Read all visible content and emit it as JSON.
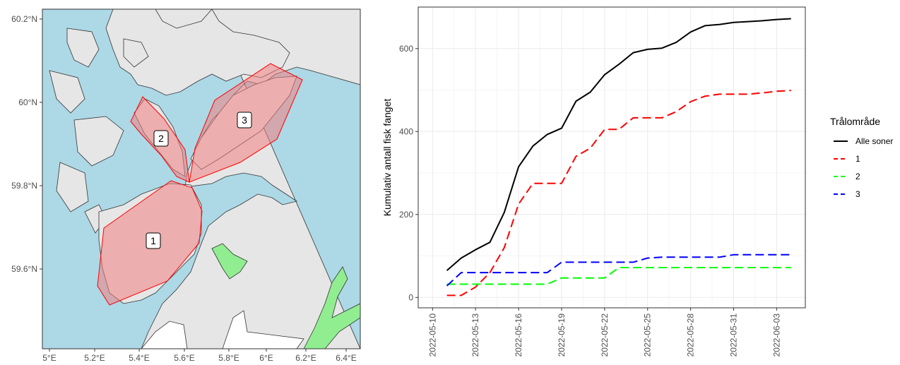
{
  "map": {
    "lat_labels": [
      "60.2°N",
      "60°N",
      "59.8°N",
      "59.6°N"
    ],
    "lon_labels": [
      "5°E",
      "5.2°E",
      "5.4°E",
      "5.6°E",
      "5.8°E",
      "6°E",
      "6.2°E",
      "6.4°E"
    ],
    "zones": [
      {
        "label": "1"
      },
      {
        "label": "2"
      },
      {
        "label": "3"
      }
    ],
    "colors": {
      "sea": "#add8e6",
      "land": "#e6e6e6",
      "zone_fill": "#f08080",
      "zone_stroke": "#ff0000",
      "special_land": "#90ee90"
    }
  },
  "chart_data": {
    "type": "line",
    "ylabel": "Kumulativ antall fisk fanget",
    "xlabel": "",
    "x_tick_labels": [
      "2022-05-10",
      "2022-05-13",
      "2022-05-16",
      "2022-05-19",
      "2022-05-22",
      "2022-05-25",
      "2022-05-28",
      "2022-05-31",
      "2022-06-03"
    ],
    "y_ticks": [
      0,
      200,
      400,
      600
    ],
    "ylim": [
      -25,
      700
    ],
    "legend_title": "Trålområde",
    "legend_position": "right",
    "grid": true,
    "x_dates": [
      "2022-05-11",
      "2022-05-12",
      "2022-05-13",
      "2022-05-14",
      "2022-05-15",
      "2022-05-16",
      "2022-05-17",
      "2022-05-18",
      "2022-05-19",
      "2022-05-20",
      "2022-05-21",
      "2022-05-22",
      "2022-05-23",
      "2022-05-24",
      "2022-05-25",
      "2022-05-26",
      "2022-05-27",
      "2022-05-28",
      "2022-05-29",
      "2022-05-30",
      "2022-05-31",
      "2022-06-01",
      "2022-06-02",
      "2022-06-03",
      "2022-06-04"
    ],
    "series": [
      {
        "name": "Alle soner",
        "color": "#000000",
        "dash": "solid",
        "values": [
          65,
          95,
          115,
          133,
          205,
          315,
          365,
          393,
          408,
          473,
          495,
          537,
          562,
          590,
          598,
          601,
          615,
          640,
          655,
          658,
          663,
          665,
          667,
          670,
          672
        ]
      },
      {
        "name": "1",
        "color": "#ff0000",
        "dash": "dashed",
        "values": [
          5,
          5,
          25,
          60,
          120,
          225,
          275,
          275,
          275,
          340,
          360,
          405,
          405,
          433,
          433,
          433,
          448,
          472,
          485,
          490,
          490,
          490,
          493,
          497,
          499
        ]
      },
      {
        "name": "2",
        "color": "#00ff00",
        "dash": "dashed",
        "values": [
          32,
          32,
          32,
          32,
          32,
          32,
          32,
          32,
          47,
          47,
          47,
          47,
          72,
          72,
          72,
          72,
          72,
          72,
          72,
          72,
          72,
          72,
          72,
          72,
          72
        ]
      },
      {
        "name": "3",
        "color": "#0000ff",
        "dash": "dashed",
        "values": [
          28,
          60,
          60,
          60,
          60,
          60,
          60,
          60,
          85,
          85,
          85,
          85,
          85,
          85,
          95,
          97,
          97,
          97,
          97,
          97,
          103,
          103,
          103,
          103,
          103
        ]
      }
    ]
  }
}
